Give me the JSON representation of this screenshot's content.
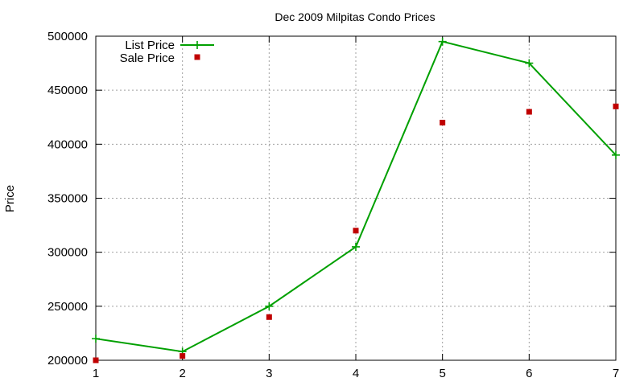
{
  "chart_data": {
    "type": "line",
    "title": "Dec 2009 Milpitas Condo Prices",
    "ylabel": "Price",
    "xlabel": "",
    "xlim": [
      1,
      7
    ],
    "ylim": [
      200000,
      500000
    ],
    "x_ticks": [
      1,
      2,
      3,
      4,
      5,
      6,
      7
    ],
    "y_ticks": [
      200000,
      250000,
      300000,
      350000,
      400000,
      450000,
      500000
    ],
    "grid": true,
    "legend_position": "top-left",
    "series": [
      {
        "name": "List Price",
        "style": "line with plus markers",
        "color": "#00a000",
        "x": [
          1,
          2,
          3,
          4,
          5,
          6,
          7
        ],
        "values": [
          220000,
          208000,
          250000,
          305000,
          495000,
          475000,
          390000
        ]
      },
      {
        "name": "Sale Price",
        "style": "square points",
        "color": "#c00000",
        "x": [
          1,
          2,
          3,
          4,
          5,
          6,
          7
        ],
        "values": [
          200000,
          204000,
          240000,
          320000,
          420000,
          430000,
          435000
        ]
      }
    ]
  }
}
